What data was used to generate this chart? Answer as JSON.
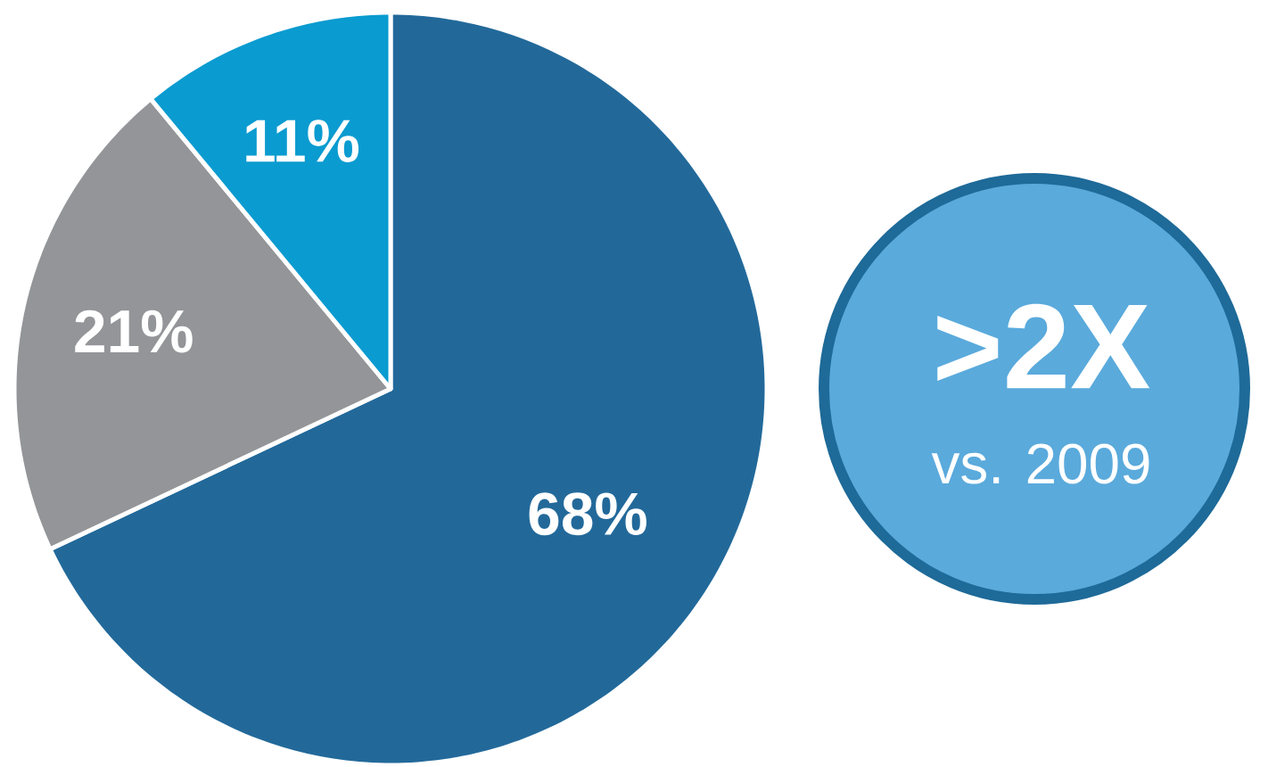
{
  "chart_data": {
    "type": "pie",
    "categories": [
      null,
      null,
      null
    ],
    "values": [
      68,
      21,
      11
    ],
    "colors": [
      "#22699a",
      "#939598",
      "#0a9bd0"
    ],
    "value_labels": [
      "68%",
      "21%",
      "11%"
    ],
    "annotations": [
      ">2X",
      "vs. 2009"
    ]
  }
}
